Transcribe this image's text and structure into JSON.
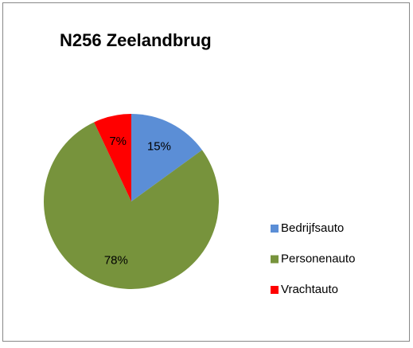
{
  "chart_data": {
    "type": "pie",
    "title": "N256 Zeelandbrug",
    "categories": [
      "Bedrijfsauto",
      "Personenauto",
      "Vrachtauto"
    ],
    "values": [
      15,
      78,
      7
    ],
    "value_labels": [
      "15%",
      "78%",
      "7%"
    ],
    "colors": [
      "#5b8ed6",
      "#77933c",
      "#ff0000"
    ],
    "legend": "right"
  }
}
